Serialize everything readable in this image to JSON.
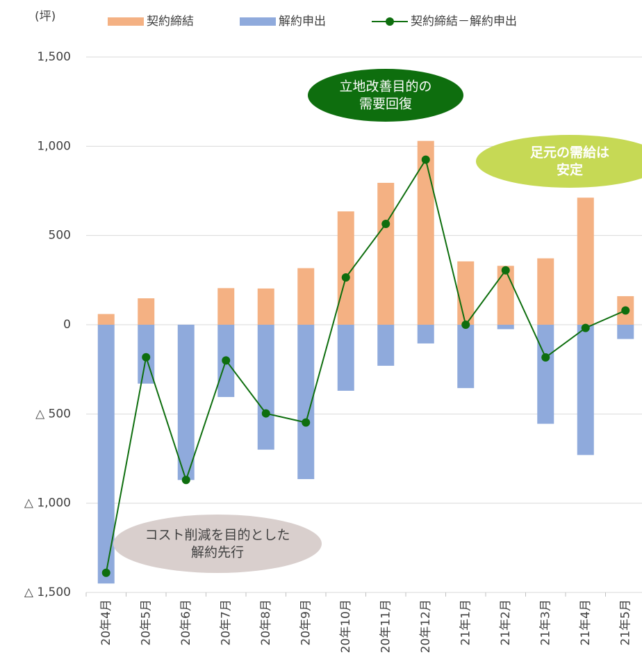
{
  "chart_data": {
    "type": "bar_line",
    "unit_label": "(坪)",
    "categories": [
      "20年4月",
      "20年5月",
      "20年6月",
      "20年7月",
      "20年8月",
      "20年9月",
      "20年10月",
      "20年11月",
      "20年12月",
      "21年1月",
      "21年2月",
      "21年3月",
      "21年4月",
      "21年5月"
    ],
    "series": [
      {
        "name": "契約締結",
        "color": "#f4b183",
        "kind": "bar",
        "values": [
          60,
          148,
          0,
          205,
          203,
          317,
          635,
          795,
          1030,
          355,
          330,
          372,
          712,
          160
        ]
      },
      {
        "name": "解約申出",
        "color": "#8faadc",
        "kind": "bar",
        "values": [
          -1450,
          -330,
          -870,
          -405,
          -700,
          -865,
          -370,
          -230,
          -105,
          -355,
          -25,
          -555,
          -730,
          -80
        ]
      },
      {
        "name": "契約締結－解約申出",
        "color": "#0e6e0e",
        "kind": "line",
        "values": [
          -1390,
          -182,
          -870,
          -200,
          -497,
          -548,
          265,
          565,
          925,
          0,
          305,
          -183,
          -18,
          80
        ]
      }
    ],
    "ylim": [
      -1500,
      1500
    ],
    "yticks": [
      {
        "value": -1500,
        "label": "△ 1,500"
      },
      {
        "value": -1000,
        "label": "△ 1,000"
      },
      {
        "value": -500,
        "label": "△ 500"
      },
      0,
      500,
      {
        "value": 1000,
        "label": "1,000"
      },
      {
        "value": 1500,
        "label": "1,500"
      }
    ],
    "grid": true,
    "legend": "top",
    "annotations": [
      {
        "lines": [
          "立地改善目的の",
          "需要回復"
        ],
        "color": "#0e6e0e",
        "text_color": "#ffffff"
      },
      {
        "lines": [
          "足元の需給は",
          "安定"
        ],
        "color": "#c6d955",
        "text_color": "#ffffff"
      },
      {
        "lines": [
          "コスト削減を目的とした",
          "解約先行"
        ],
        "color": "#d9cfcd",
        "text_color": "#404040"
      }
    ]
  }
}
